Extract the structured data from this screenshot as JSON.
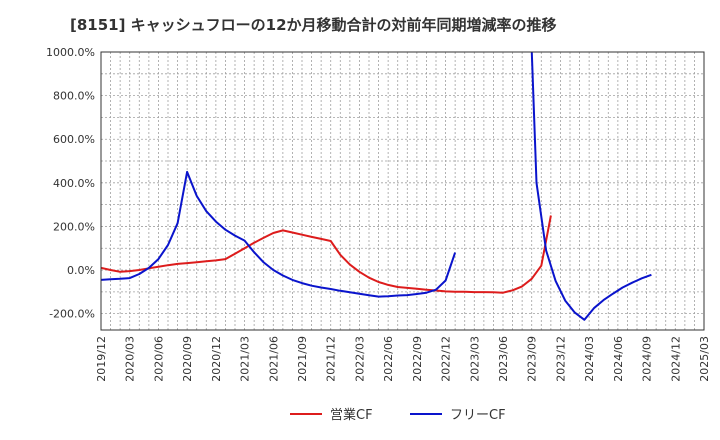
{
  "chart_data": {
    "type": "line",
    "title": "[8151]  キャッシュフローの12か月移動合計の対前年同期増減率の推移",
    "xlabel": "",
    "ylabel": "",
    "ylim": [
      -275,
      1000
    ],
    "y_ticks": [
      -200,
      0,
      200,
      400,
      600,
      800,
      1000
    ],
    "y_tick_labels": [
      "-200.0%",
      "0.0%",
      "200.0%",
      "400.0%",
      "600.0%",
      "800.0%",
      "1000.0%"
    ],
    "x_tick_labels": [
      "2019/12",
      "2020/03",
      "2020/06",
      "2020/09",
      "2020/12",
      "2021/03",
      "2021/06",
      "2021/09",
      "2021/12",
      "2022/03",
      "2022/06",
      "2022/09",
      "2022/12",
      "2023/03",
      "2023/06",
      "2023/09",
      "2023/12",
      "2024/03",
      "2024/06",
      "2024/09",
      "2024/12",
      "2025/03"
    ],
    "legend_position": "bottom-center",
    "series": [
      {
        "name": "営業CF",
        "color": "#dd1c1c",
        "points": [
          [
            0,
            10
          ],
          [
            1,
            0
          ],
          [
            2,
            -8
          ],
          [
            3,
            -5
          ],
          [
            4,
            0
          ],
          [
            5,
            8
          ],
          [
            6,
            15
          ],
          [
            7,
            22
          ],
          [
            8,
            28
          ],
          [
            9,
            32
          ],
          [
            10,
            36
          ],
          [
            11,
            40
          ],
          [
            12,
            44
          ],
          [
            13,
            50
          ],
          [
            14,
            75
          ],
          [
            15,
            100
          ],
          [
            16,
            125
          ],
          [
            17,
            148
          ],
          [
            18,
            170
          ],
          [
            19,
            182
          ],
          [
            20,
            172
          ],
          [
            21,
            162
          ],
          [
            22,
            152
          ],
          [
            23,
            143
          ],
          [
            24,
            133
          ],
          [
            25,
            70
          ],
          [
            26,
            25
          ],
          [
            27,
            -8
          ],
          [
            28,
            -35
          ],
          [
            29,
            -55
          ],
          [
            30,
            -68
          ],
          [
            31,
            -78
          ],
          [
            32,
            -82
          ],
          [
            33,
            -86
          ],
          [
            34,
            -90
          ],
          [
            35,
            -94
          ],
          [
            36,
            -98
          ],
          [
            37,
            -100
          ],
          [
            38,
            -100
          ],
          [
            39,
            -101
          ],
          [
            40,
            -101
          ],
          [
            41,
            -102
          ],
          [
            42,
            -104
          ],
          [
            43,
            -93
          ],
          [
            44,
            -75
          ],
          [
            45,
            -40
          ],
          [
            46,
            20
          ],
          [
            47,
            250
          ]
        ]
      },
      {
        "name": "フリーCF",
        "color": "#0a14cc",
        "points": [
          [
            0,
            -45
          ],
          [
            1,
            -42
          ],
          [
            2,
            -40
          ],
          [
            3,
            -37
          ],
          [
            4,
            -18
          ],
          [
            5,
            10
          ],
          [
            6,
            50
          ],
          [
            7,
            115
          ],
          [
            8,
            215
          ],
          [
            9,
            450
          ],
          [
            10,
            340
          ],
          [
            11,
            270
          ],
          [
            12,
            222
          ],
          [
            13,
            185
          ],
          [
            14,
            158
          ],
          [
            15,
            135
          ],
          [
            16,
            82
          ],
          [
            17,
            35
          ],
          [
            18,
            0
          ],
          [
            19,
            -25
          ],
          [
            20,
            -45
          ],
          [
            21,
            -60
          ],
          [
            22,
            -72
          ],
          [
            23,
            -80
          ],
          [
            24,
            -87
          ],
          [
            25,
            -95
          ],
          [
            26,
            -102
          ],
          [
            27,
            -109
          ],
          [
            28,
            -116
          ],
          [
            29,
            -122
          ],
          [
            30,
            -120
          ],
          [
            31,
            -117
          ],
          [
            32,
            -115
          ],
          [
            33,
            -110
          ],
          [
            34,
            -104
          ],
          [
            35,
            -90
          ],
          [
            36,
            -48
          ],
          [
            37,
            80
          ],
          [
            null,
            null
          ],
          [
            45,
            1010
          ],
          [
            45.5,
            400
          ],
          [
            46.5,
            90
          ],
          [
            47.5,
            -50
          ],
          [
            48.5,
            -140
          ],
          [
            49.5,
            -195
          ],
          [
            50.5,
            -228
          ],
          [
            51.5,
            -175
          ],
          [
            52.5,
            -138
          ],
          [
            53.5,
            -108
          ],
          [
            54.5,
            -80
          ],
          [
            55.5,
            -58
          ],
          [
            56.5,
            -38
          ],
          [
            57.5,
            -22
          ]
        ]
      }
    ]
  }
}
